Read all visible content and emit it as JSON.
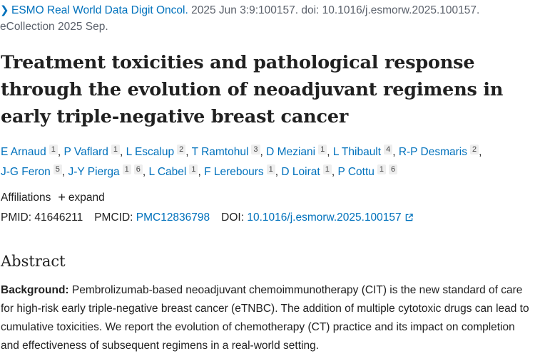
{
  "citation": {
    "journal": "ESMO Real World Data Digit Oncol.",
    "details": " 2025 Jun 3:9:100157. doi: 10.1016/j.esmorw.2025.100157. eCollection 2025 Sep."
  },
  "article": {
    "title": "Treatment toxicities and pathological response through the evolution of neoadjuvant regimens in early triple-negative breast cancer"
  },
  "authors": [
    {
      "name": "E Arnaud",
      "aff": "1"
    },
    {
      "name": "P Vaflard",
      "aff": "1"
    },
    {
      "name": "L Escalup",
      "aff": "2"
    },
    {
      "name": "T Ramtohul",
      "aff": "3"
    },
    {
      "name": "D Meziani",
      "aff": "1"
    },
    {
      "name": "L Thibault",
      "aff": "4"
    },
    {
      "name": "R-P Desmaris",
      "aff": "2"
    },
    {
      "name": "J-G Feron",
      "aff": "5"
    },
    {
      "name": "J-Y Pierga",
      "aff": "1",
      "aff2": "6"
    },
    {
      "name": "L Cabel",
      "aff": "1"
    },
    {
      "name": "F Lerebours",
      "aff": "1"
    },
    {
      "name": "D Loirat",
      "aff": "1"
    },
    {
      "name": "P Cottu",
      "aff": "1",
      "aff2": "6"
    }
  ],
  "affiliations": {
    "label": "Affiliations",
    "expand_label": "expand"
  },
  "identifiers": {
    "pmid_label": "PMID:",
    "pmid": "41646211",
    "pmcid_label": "PMCID:",
    "pmcid": "PMC12836798",
    "doi_label": "DOI:",
    "doi": "10.1016/j.esmorw.2025.100157"
  },
  "abstract": {
    "heading": "Abstract",
    "background_label": "Background:",
    "background_text": " Pembrolizumab-based neoadjuvant chemoimmunotherapy (CIT) is the new standard of care for high-risk early triple-negative breast cancer (eTNBC). The addition of multiple cytotoxic drugs can lead to cumulative toxicities. We report the evolution of chemotherapy (CT) practice and its impact on completion and effectiveness of subsequent regimens in a real-world setting."
  },
  "icons": {
    "chevron": "chevron-right-icon",
    "plus": "plus-icon",
    "external": "external-link-icon"
  },
  "colors": {
    "link": "#0071bc",
    "text": "#212121",
    "muted": "#5b616b"
  }
}
